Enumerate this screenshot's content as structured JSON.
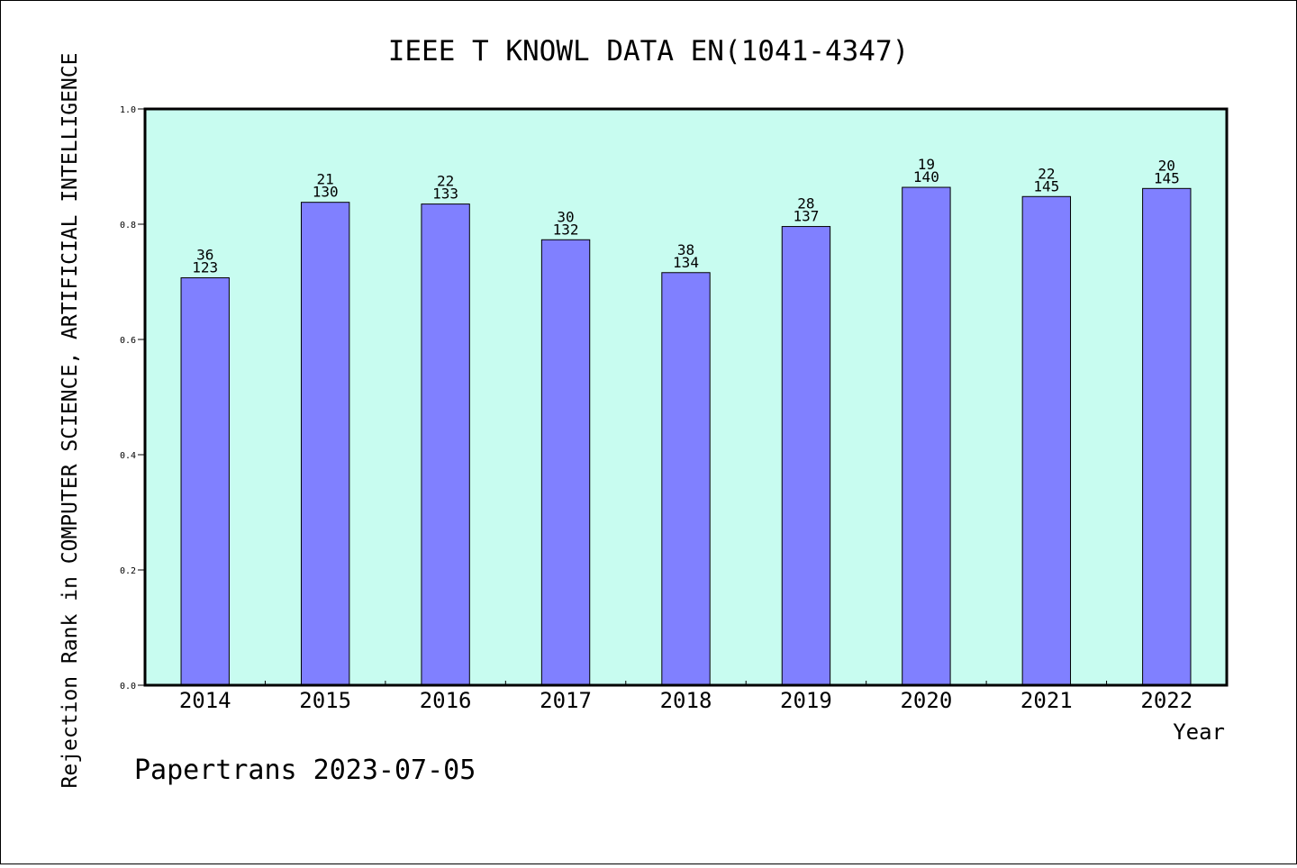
{
  "chart_data": {
    "type": "bar",
    "title": "IEEE T KNOWL DATA EN(1041-4347)",
    "ylabel": "Rejection Rank in COMPUTER SCIENCE, ARTIFICIAL INTELLIGENCE",
    "xlabel": "Year",
    "footer": "Papertrans 2023-07-05",
    "categories": [
      "2014",
      "2015",
      "2016",
      "2017",
      "2018",
      "2019",
      "2020",
      "2021",
      "2022"
    ],
    "values": [
      0.707,
      0.838,
      0.835,
      0.773,
      0.716,
      0.796,
      0.864,
      0.848,
      0.862
    ],
    "rank": [
      36,
      21,
      22,
      30,
      38,
      28,
      19,
      22,
      20
    ],
    "total": [
      123,
      130,
      133,
      132,
      134,
      137,
      140,
      145,
      145
    ],
    "ylim": [
      0,
      1.0
    ],
    "yticks": [
      "0.0",
      "0.2",
      "0.4",
      "0.6",
      "0.8",
      "1.0"
    ],
    "grid": false,
    "colors": {
      "plot_bg": "#c8fcf0",
      "bar": "#8080ff",
      "bar_edge": "#000000"
    }
  }
}
